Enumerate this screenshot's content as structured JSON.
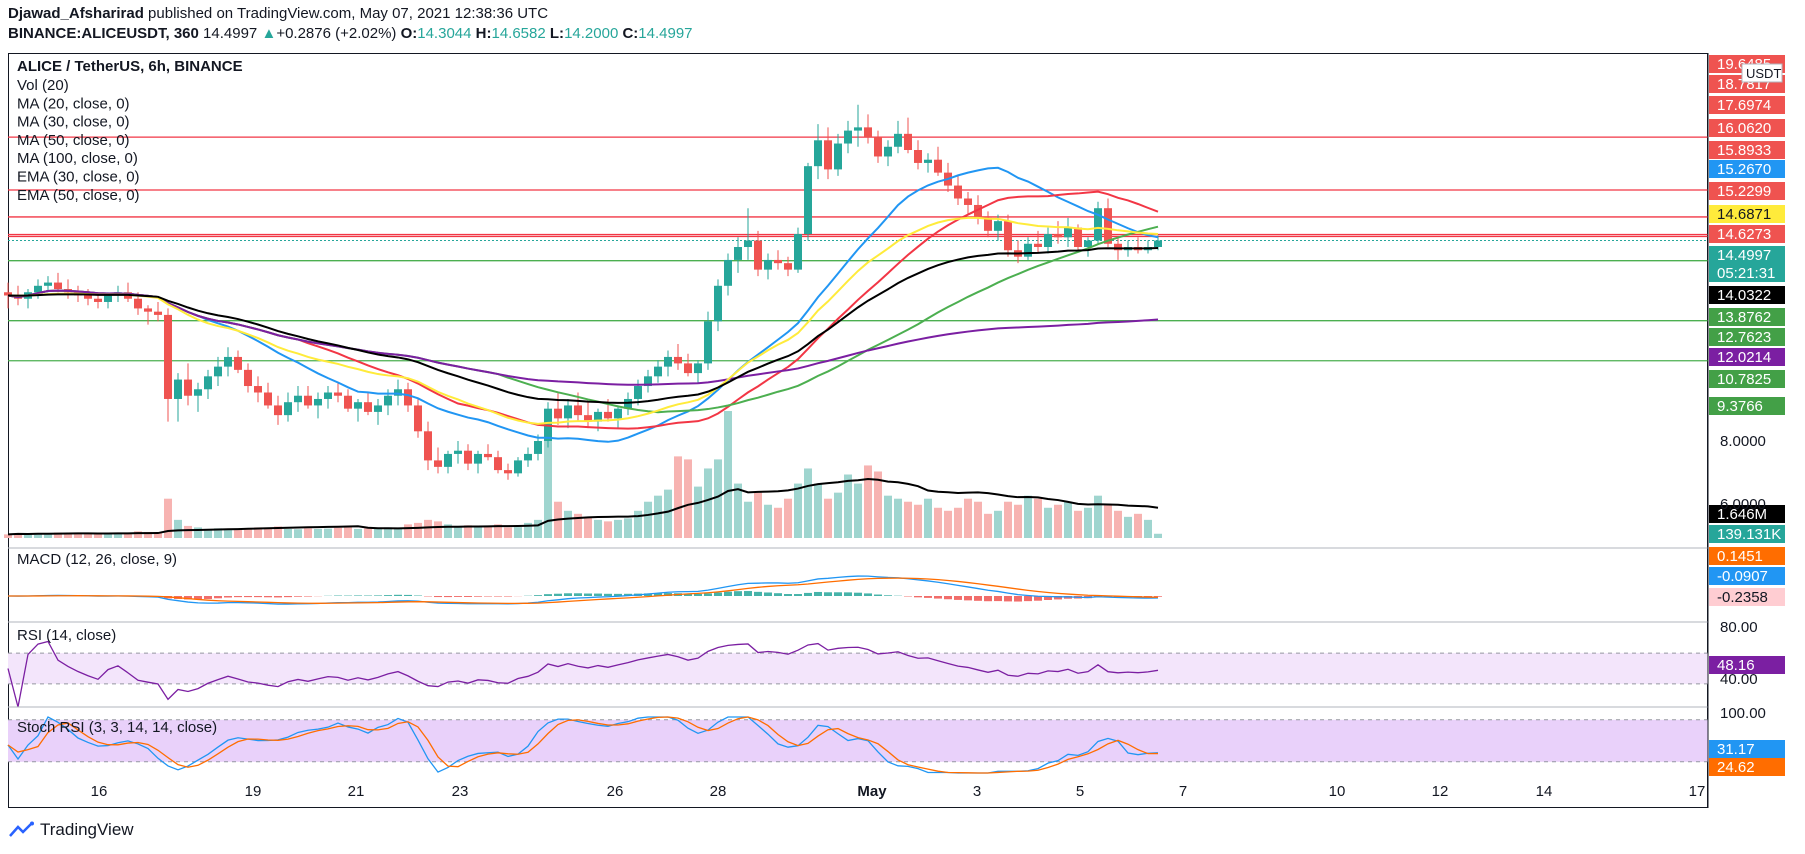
{
  "header": {
    "line1_author": "Djawad_Afsharirad",
    "line1_rest": " published on TradingView.com, May 07, 2021 12:38:36 UTC",
    "symbol": "BINANCE:ALICEUSDT, 360",
    "last": "14.4997",
    "change": "+0.2876 (+2.02%)",
    "o_label": "O:",
    "o_value": "14.3044",
    "h_label": "H:",
    "h_value": "14.6582",
    "l_label": "L:",
    "l_value": "14.2000",
    "c_label": "C:",
    "c_value": "14.4997"
  },
  "legend": {
    "title": "ALICE / TetherUS, 6h, BINANCE",
    "items": [
      "Vol (20)",
      "MA (20, close, 0)",
      "MA (30, close, 0)",
      "MA (50, close, 0)",
      "MA (100, close, 0)",
      "EMA (30, close, 0)",
      "EMA (50, close, 0)"
    ]
  },
  "indicators": {
    "macd_title": "MACD (12, 26, close, 9)",
    "rsi_title": "RSI (14, close)",
    "stoch_title": "Stoch RSI (3, 3, 14, 14, close)"
  },
  "footer": {
    "brand": "TradingView"
  },
  "colors": {
    "up": "#26a69a",
    "down": "#ef5350",
    "up_vol": "#9fd5cf",
    "down_vol": "#f7b3b1",
    "ma20": "#2196f3",
    "ma30": "#f23645",
    "ma50": "#4caf50",
    "ma100": "#7b1fa2",
    "ema30": "#ffeb3b",
    "ema50": "#000000",
    "hline_red": "#f23645",
    "hline_green": "#4caf50",
    "macd_line": "#2196f3",
    "signal_line": "#ff6d00",
    "rsi_line": "#7b1fa2",
    "rsi_band": "#f3e5fb",
    "stoch_k": "#2196f3",
    "stoch_d": "#ff6d00",
    "stoch_band": "#e9d1fa"
  },
  "chart_data": [
    {
      "type": "candlestick",
      "title": "ALICE / TetherUS, 6h, BINANCE",
      "currency": "USDT",
      "x_ticks": [
        "16",
        "19",
        "21",
        "23",
        "26",
        "28",
        "May",
        "3",
        "5",
        "7",
        "10",
        "12",
        "14",
        "17"
      ],
      "price_axis_labels": [
        "19.6485",
        "18.7817",
        "17.6974",
        "16.0620",
        "15.8933",
        "15.2670",
        "15.2299",
        "14.6871",
        "14.6273",
        "14.4997",
        "05:21:31",
        "14.0322",
        "13.8762",
        "12.7623",
        "12.0214",
        "10.7825",
        "9.3766",
        "8.0000",
        "6.0000",
        "1.646M",
        "139.131K"
      ],
      "price_gridlines": [
        "8.0000",
        "6.0000"
      ],
      "horizontal_levels": {
        "resistance_red": [
          17.6974,
          16.062,
          15.2299,
          14.6871,
          14.6273
        ],
        "support_green": [
          13.8762,
          12.0214,
          10.7825
        ]
      },
      "last_price": 14.4997,
      "countdown": "05:21:31",
      "ohlc": [
        [
          12.9,
          13.2,
          12.4,
          12.8
        ],
        [
          12.8,
          13.1,
          12.5,
          12.7
        ],
        [
          12.7,
          13.0,
          12.4,
          12.9
        ],
        [
          12.9,
          13.3,
          12.7,
          13.1
        ],
        [
          13.1,
          13.4,
          12.9,
          13.2
        ],
        [
          13.2,
          13.5,
          12.9,
          13.0
        ],
        [
          13.0,
          13.3,
          12.7,
          12.9
        ],
        [
          12.9,
          13.1,
          12.6,
          12.8
        ],
        [
          12.8,
          13.0,
          12.5,
          12.7
        ],
        [
          12.7,
          12.9,
          12.4,
          12.6
        ],
        [
          12.6,
          12.9,
          12.4,
          12.8
        ],
        [
          12.8,
          13.1,
          12.6,
          12.9
        ],
        [
          12.9,
          13.2,
          12.6,
          12.7
        ],
        [
          12.7,
          12.9,
          12.2,
          12.4
        ],
        [
          12.4,
          12.5,
          11.9,
          12.3
        ],
        [
          12.3,
          12.6,
          12.0,
          12.2
        ],
        [
          12.2,
          12.4,
          8.9,
          9.6
        ],
        [
          9.6,
          10.4,
          8.9,
          10.2
        ],
        [
          10.2,
          10.7,
          9.4,
          9.7
        ],
        [
          9.7,
          10.1,
          9.2,
          9.9
        ],
        [
          9.9,
          10.5,
          9.6,
          10.3
        ],
        [
          10.3,
          10.9,
          10.0,
          10.6
        ],
        [
          10.6,
          11.2,
          10.3,
          10.9
        ],
        [
          10.9,
          11.1,
          10.4,
          10.5
        ],
        [
          10.5,
          10.7,
          9.8,
          10.0
        ],
        [
          10.0,
          10.3,
          9.5,
          9.8
        ],
        [
          9.8,
          10.1,
          9.3,
          9.4
        ],
        [
          9.4,
          9.7,
          8.8,
          9.1
        ],
        [
          9.1,
          9.8,
          8.9,
          9.5
        ],
        [
          9.5,
          10.0,
          9.2,
          9.7
        ],
        [
          9.7,
          10.0,
          9.3,
          9.4
        ],
        [
          9.4,
          9.8,
          9.0,
          9.6
        ],
        [
          9.6,
          10.0,
          9.3,
          9.8
        ],
        [
          9.8,
          10.1,
          9.5,
          9.7
        ],
        [
          9.7,
          9.9,
          9.2,
          9.3
        ],
        [
          9.3,
          9.6,
          8.9,
          9.5
        ],
        [
          9.5,
          9.8,
          9.1,
          9.2
        ],
        [
          9.2,
          9.6,
          8.8,
          9.4
        ],
        [
          9.4,
          9.9,
          9.1,
          9.7
        ],
        [
          9.7,
          10.2,
          9.4,
          9.9
        ],
        [
          9.9,
          10.1,
          9.2,
          9.4
        ],
        [
          9.4,
          9.6,
          8.4,
          8.6
        ],
        [
          8.6,
          8.9,
          7.4,
          7.7
        ],
        [
          7.7,
          8.1,
          7.3,
          7.5
        ],
        [
          7.5,
          8.0,
          7.3,
          7.9
        ],
        [
          7.9,
          8.3,
          7.6,
          8.0
        ],
        [
          8.0,
          8.2,
          7.4,
          7.6
        ],
        [
          7.6,
          8.0,
          7.3,
          7.9
        ],
        [
          7.9,
          8.2,
          7.7,
          7.8
        ],
        [
          7.8,
          8.0,
          7.3,
          7.4
        ],
        [
          7.4,
          7.6,
          7.1,
          7.3
        ],
        [
          7.3,
          7.8,
          7.2,
          7.7
        ],
        [
          7.7,
          8.1,
          7.5,
          7.9
        ],
        [
          7.9,
          8.5,
          7.7,
          8.3
        ],
        [
          8.3,
          9.5,
          8.1,
          9.3
        ],
        [
          9.3,
          9.8,
          8.8,
          9.0
        ],
        [
          9.0,
          9.6,
          8.7,
          9.4
        ],
        [
          9.4,
          9.8,
          8.9,
          9.1
        ],
        [
          9.1,
          9.5,
          8.7,
          8.9
        ],
        [
          8.9,
          9.3,
          8.6,
          9.2
        ],
        [
          9.2,
          9.6,
          8.9,
          9.0
        ],
        [
          9.0,
          9.4,
          8.7,
          9.3
        ],
        [
          9.3,
          9.8,
          9.1,
          9.6
        ],
        [
          9.6,
          10.2,
          9.4,
          10.0
        ],
        [
          10.0,
          10.5,
          9.8,
          10.3
        ],
        [
          10.3,
          10.8,
          10.1,
          10.6
        ],
        [
          10.6,
          11.1,
          10.3,
          10.9
        ],
        [
          10.9,
          11.3,
          10.5,
          10.7
        ],
        [
          10.7,
          11.0,
          10.3,
          10.4
        ],
        [
          10.4,
          10.8,
          10.1,
          10.7
        ],
        [
          10.7,
          12.3,
          10.5,
          12.0
        ],
        [
          12.0,
          13.3,
          11.7,
          13.1
        ],
        [
          13.1,
          14.1,
          12.8,
          13.9
        ],
        [
          13.9,
          14.6,
          13.5,
          14.3
        ],
        [
          14.3,
          15.5,
          13.9,
          14.5
        ],
        [
          14.5,
          14.8,
          13.4,
          13.6
        ],
        [
          13.6,
          14.1,
          13.3,
          13.9
        ],
        [
          13.9,
          14.2,
          13.6,
          13.8
        ],
        [
          13.8,
          14.0,
          13.4,
          13.6
        ],
        [
          13.6,
          14.9,
          13.5,
          14.7
        ],
        [
          14.7,
          16.9,
          14.5,
          16.8
        ],
        [
          16.8,
          18.1,
          16.4,
          17.6
        ],
        [
          17.6,
          18.0,
          16.4,
          16.7
        ],
        [
          16.7,
          17.8,
          16.5,
          17.5
        ],
        [
          17.5,
          18.2,
          17.2,
          17.9
        ],
        [
          17.9,
          18.7,
          17.4,
          18.0
        ],
        [
          18.0,
          18.4,
          17.5,
          17.7
        ],
        [
          17.7,
          17.9,
          16.9,
          17.1
        ],
        [
          17.1,
          17.6,
          16.8,
          17.4
        ],
        [
          17.4,
          18.2,
          17.2,
          17.8
        ],
        [
          17.8,
          18.3,
          17.2,
          17.3
        ],
        [
          17.3,
          17.6,
          16.7,
          16.9
        ],
        [
          16.9,
          17.2,
          16.6,
          17.0
        ],
        [
          17.0,
          17.4,
          16.5,
          16.6
        ],
        [
          16.6,
          16.9,
          16.0,
          16.2
        ],
        [
          16.2,
          16.5,
          15.6,
          15.8
        ],
        [
          15.8,
          16.0,
          15.3,
          15.6
        ],
        [
          15.6,
          15.9,
          15.0,
          15.2
        ],
        [
          15.2,
          15.4,
          14.6,
          14.8
        ],
        [
          14.8,
          15.3,
          14.5,
          15.1
        ],
        [
          15.1,
          15.3,
          14.0,
          14.2
        ],
        [
          14.2,
          14.5,
          13.8,
          14.0
        ],
        [
          14.0,
          14.6,
          13.9,
          14.4
        ],
        [
          14.4,
          14.8,
          14.1,
          14.3
        ],
        [
          14.3,
          14.9,
          14.1,
          14.7
        ],
        [
          14.7,
          15.1,
          14.4,
          14.6
        ],
        [
          14.6,
          15.2,
          14.3,
          14.9
        ],
        [
          14.9,
          15.0,
          14.2,
          14.3
        ],
        [
          14.3,
          14.6,
          14.0,
          14.5
        ],
        [
          14.5,
          15.7,
          14.4,
          15.5
        ],
        [
          15.5,
          15.8,
          14.3,
          14.4
        ],
        [
          14.4,
          14.6,
          13.9,
          14.2
        ],
        [
          14.2,
          14.5,
          14.0,
          14.3
        ],
        [
          14.3,
          14.6,
          14.1,
          14.2
        ],
        [
          14.2,
          14.5,
          14.1,
          14.3
        ],
        [
          14.3,
          14.66,
          14.2,
          14.4997
        ]
      ],
      "volume": [
        0.12,
        0.15,
        0.13,
        0.16,
        0.14,
        0.18,
        0.16,
        0.17,
        0.15,
        0.14,
        0.16,
        0.18,
        0.17,
        0.22,
        0.2,
        0.19,
        1.3,
        0.6,
        0.4,
        0.35,
        0.3,
        0.32,
        0.28,
        0.3,
        0.33,
        0.35,
        0.31,
        0.38,
        0.3,
        0.29,
        0.32,
        0.3,
        0.31,
        0.34,
        0.36,
        0.3,
        0.32,
        0.33,
        0.35,
        0.31,
        0.45,
        0.5,
        0.6,
        0.55,
        0.45,
        0.4,
        0.42,
        0.38,
        0.4,
        0.45,
        0.35,
        0.36,
        0.5,
        0.6,
        3.3,
        1.2,
        0.9,
        0.8,
        0.7,
        0.6,
        0.55,
        0.6,
        0.65,
        0.9,
        1.2,
        1.4,
        1.6,
        2.7,
        2.6,
        1.7,
        2.3,
        2.6,
        4.2,
        1.8,
        1.2,
        1.5,
        1.1,
        1.0,
        1.3,
        1.8,
        2.3,
        1.8,
        1.3,
        1.5,
        2.1,
        1.8,
        2.4,
        2.2,
        1.4,
        1.3,
        1.2,
        1.1,
        1.3,
        1.0,
        0.9,
        1.0,
        1.3,
        1.2,
        0.8,
        0.9,
        1.2,
        1.1,
        1.4,
        1.3,
        1.0,
        1.1,
        1.2,
        0.9,
        1.0,
        1.4,
        1.1,
        0.9,
        0.7,
        0.8,
        0.6,
        0.14
      ],
      "volume_ma_last": "1.646M",
      "volume_last": "139.131K"
    },
    {
      "type": "line",
      "title": "MACD (12, 26, close, 9)",
      "last_values": {
        "signal": "0.1451",
        "macd": "-0.0907",
        "histogram": "-0.2358"
      }
    },
    {
      "type": "line",
      "title": "RSI (14, close)",
      "y_ticks": [
        "80.00",
        "40.00"
      ],
      "band": [
        30,
        70
      ],
      "last_value": "48.16"
    },
    {
      "type": "line",
      "title": "Stoch RSI (3, 3, 14, 14, close)",
      "y_ticks": [
        "100.00"
      ],
      "band": [
        20,
        80
      ],
      "last_values": {
        "k": "31.17",
        "d": "24.62"
      }
    }
  ]
}
